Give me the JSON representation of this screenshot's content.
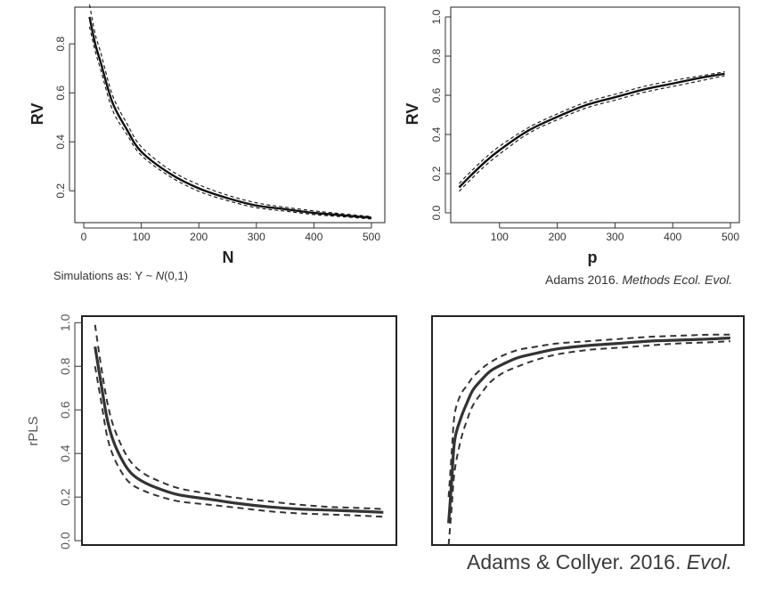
{
  "chart_data": [
    {
      "type": "line",
      "id": "p1",
      "xlabel": "N",
      "ylabel": "RV",
      "xlim": [
        0,
        510
      ],
      "ylim": [
        0.07,
        0.95
      ],
      "xticks": [
        "0",
        "100",
        "200",
        "300",
        "400",
        "500"
      ],
      "yticks": [
        "0.2",
        "0.4",
        "0.6",
        "0.8"
      ],
      "x": [
        10,
        20,
        30,
        50,
        75,
        100,
        150,
        200,
        250,
        300,
        350,
        400,
        450,
        500
      ],
      "series": [
        {
          "values": [
            0.91,
            0.8,
            0.72,
            0.56,
            0.45,
            0.36,
            0.27,
            0.21,
            0.17,
            0.14,
            0.125,
            0.11,
            0.1,
            0.09
          ]
        },
        {
          "values": [
            0.96,
            0.84,
            0.76,
            0.59,
            0.475,
            0.38,
            0.285,
            0.225,
            0.182,
            0.151,
            0.133,
            0.118,
            0.106,
            0.095
          ],
          "style": "dashed"
        },
        {
          "values": [
            0.87,
            0.77,
            0.69,
            0.53,
            0.43,
            0.345,
            0.258,
            0.198,
            0.16,
            0.131,
            0.117,
            0.103,
            0.094,
            0.085
          ],
          "style": "dashed"
        }
      ]
    },
    {
      "type": "line",
      "id": "p2",
      "xlabel": "p",
      "ylabel": "RV",
      "xlim": [
        0,
        510
      ],
      "ylim": [
        -0.05,
        1.05
      ],
      "xticks": [
        "100",
        "200",
        "300",
        "400",
        "500"
      ],
      "yticks": [
        "0.0",
        "0.2",
        "0.4",
        "0.6",
        "0.8",
        "1.0"
      ],
      "x": [
        30,
        50,
        75,
        100,
        150,
        200,
        250,
        300,
        350,
        400,
        450,
        490
      ],
      "series": [
        {
          "values": [
            0.13,
            0.19,
            0.26,
            0.32,
            0.42,
            0.49,
            0.55,
            0.59,
            0.63,
            0.66,
            0.69,
            0.71
          ]
        },
        {
          "values": [
            0.15,
            0.21,
            0.28,
            0.34,
            0.435,
            0.505,
            0.565,
            0.605,
            0.645,
            0.675,
            0.7,
            0.72
          ],
          "style": "dashed"
        },
        {
          "values": [
            0.11,
            0.17,
            0.24,
            0.3,
            0.405,
            0.475,
            0.535,
            0.575,
            0.615,
            0.645,
            0.675,
            0.7
          ],
          "style": "dashed"
        }
      ]
    },
    {
      "type": "line",
      "id": "p3",
      "xlabel": "",
      "ylabel": "rPLS",
      "ylim": [
        -0.02,
        1.03
      ],
      "xlim": [
        0,
        100
      ],
      "yticks": [
        "0.0",
        "0.2",
        "0.4",
        "0.6",
        "0.8",
        "1.0"
      ],
      "x": [
        2,
        4,
        6,
        8,
        11,
        14,
        18,
        23,
        30,
        40,
        50,
        60,
        70,
        80,
        90,
        98
      ],
      "series": [
        {
          "values": [
            0.89,
            0.72,
            0.56,
            0.46,
            0.37,
            0.31,
            0.27,
            0.24,
            0.21,
            0.19,
            0.17,
            0.155,
            0.145,
            0.14,
            0.135,
            0.13
          ]
        },
        {
          "values": [
            0.99,
            0.8,
            0.64,
            0.53,
            0.43,
            0.36,
            0.31,
            0.275,
            0.24,
            0.215,
            0.195,
            0.18,
            0.165,
            0.155,
            0.15,
            0.145
          ],
          "style": "dashed"
        },
        {
          "values": [
            0.8,
            0.64,
            0.48,
            0.39,
            0.31,
            0.26,
            0.23,
            0.205,
            0.18,
            0.165,
            0.15,
            0.135,
            0.125,
            0.12,
            0.115,
            0.11
          ],
          "style": "dashed"
        }
      ]
    },
    {
      "type": "line",
      "id": "p4",
      "xlabel": "",
      "ylabel": "",
      "ylim": [
        -0.02,
        1.03
      ],
      "xlim": [
        0,
        100
      ],
      "x": [
        4,
        5,
        6,
        8,
        10,
        12,
        15,
        18,
        22,
        27,
        33,
        40,
        50,
        60,
        70,
        80,
        90,
        97
      ],
      "series": [
        {
          "values": [
            0.08,
            0.27,
            0.46,
            0.56,
            0.63,
            0.69,
            0.74,
            0.78,
            0.81,
            0.84,
            0.86,
            0.88,
            0.895,
            0.905,
            0.915,
            0.92,
            0.925,
            0.93
          ]
        },
        {
          "values": [
            0.2,
            0.4,
            0.58,
            0.67,
            0.71,
            0.75,
            0.79,
            0.82,
            0.85,
            0.875,
            0.89,
            0.905,
            0.915,
            0.925,
            0.935,
            0.94,
            0.945,
            0.945
          ],
          "style": "dashed"
        },
        {
          "values": [
            -0.02,
            0.15,
            0.32,
            0.46,
            0.55,
            0.62,
            0.68,
            0.73,
            0.77,
            0.8,
            0.83,
            0.855,
            0.875,
            0.885,
            0.895,
            0.905,
            0.91,
            0.915
          ],
          "style": "dashed"
        }
      ]
    }
  ],
  "notes": {
    "simulations_prefix": "Simulations as: Y ~ ",
    "simulations_n": "N",
    "simulations_suffix": "(0,1)",
    "ref1_author": "Adams 2016. ",
    "ref1_journal": "Methods Ecol. Evol.",
    "ref2_author": "Adams & Collyer. 2016. ",
    "ref2_journal": "Evol."
  }
}
